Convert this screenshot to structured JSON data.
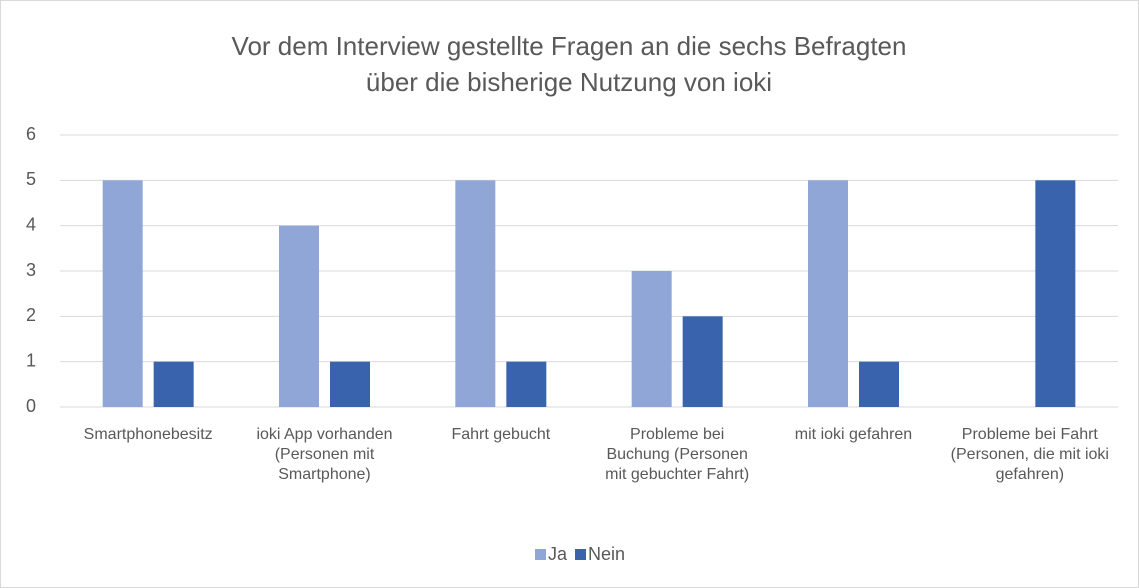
{
  "chart_data": {
    "type": "bar",
    "title": [
      "Vor dem Interview gestellte Fragen an die sechs Befragten",
      "über die bisherige Nutzung von ioki"
    ],
    "categories": [
      "Smartphonebesitz",
      "ioki App vorhanden (Personen mit Smartphone)",
      "Fahrt gebucht",
      "Probleme bei Buchung (Personen mit gebuchter Fahrt)",
      "mit ioki gefahren",
      "Probleme bei Fahrt (Personen, die mit ioki gefahren)"
    ],
    "series": [
      {
        "name": "Ja",
        "color": "#8fa6d7",
        "values": [
          5,
          4,
          5,
          3,
          5,
          0
        ]
      },
      {
        "name": "Nein",
        "color": "#3a63ad",
        "values": [
          1,
          1,
          1,
          2,
          1,
          5
        ]
      }
    ],
    "ylim": [
      0,
      6
    ],
    "yticks": [
      0,
      1,
      2,
      3,
      4,
      5,
      6
    ],
    "grid": true,
    "legend": "bottom"
  }
}
